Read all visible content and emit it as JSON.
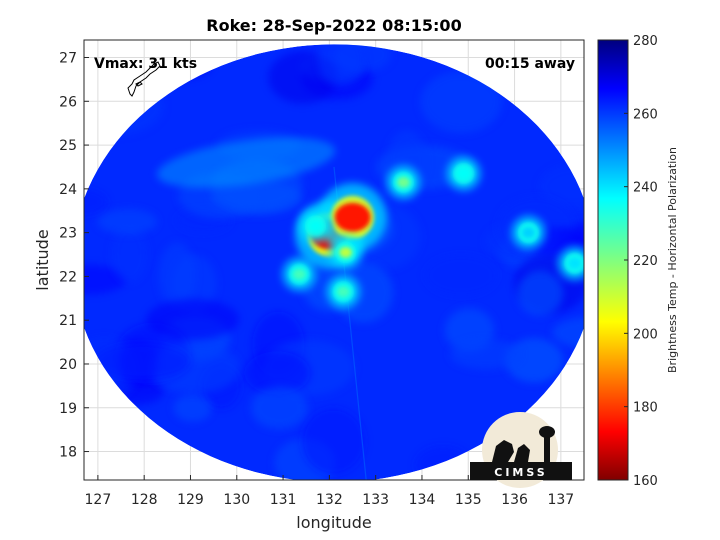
{
  "chart_data": {
    "type": "heatmap",
    "title": "Roke: 28-Sep-2022 08:15:00",
    "xlabel": "longitude",
    "ylabel": "latitude",
    "xlim": [
      126.7,
      137.5
    ],
    "ylim": [
      17.35,
      27.4
    ],
    "xticks": [
      127,
      128,
      129,
      130,
      131,
      132,
      133,
      134,
      135,
      136,
      137
    ],
    "yticks": [
      18,
      19,
      20,
      21,
      22,
      23,
      24,
      25,
      26,
      27
    ],
    "grid": true,
    "colorbar": {
      "label": "Brightness Temp - Horizontal Polarization",
      "range": [
        160,
        280
      ],
      "ticks": [
        160,
        180,
        200,
        220,
        240,
        260,
        280
      ],
      "colormap": "jet"
    },
    "annotations": {
      "vmax": "Vmax: 31 kts",
      "time_away": "00:15 away"
    },
    "swath": {
      "center_lon": 132.1,
      "center_lat": 22.3,
      "radius_deg_lon": 5.65,
      "radius_deg_lat": 5.0,
      "background_value": 262
    },
    "features": [
      {
        "lon": 132.0,
        "lat": 22.95,
        "value": 172
      },
      {
        "lon": 132.5,
        "lat": 23.35,
        "value": 176
      },
      {
        "lon": 132.35,
        "lat": 22.55,
        "value": 212
      },
      {
        "lon": 132.3,
        "lat": 21.65,
        "value": 228
      },
      {
        "lon": 131.35,
        "lat": 22.05,
        "value": 228
      },
      {
        "lon": 131.7,
        "lat": 23.15,
        "value": 236
      },
      {
        "lon": 133.6,
        "lat": 24.15,
        "value": 222
      },
      {
        "lon": 134.9,
        "lat": 24.35,
        "value": 236
      },
      {
        "lon": 136.3,
        "lat": 23.0,
        "value": 242
      },
      {
        "lon": 137.3,
        "lat": 22.3,
        "value": 240
      }
    ]
  },
  "logo": {
    "text": "CIMSS"
  }
}
